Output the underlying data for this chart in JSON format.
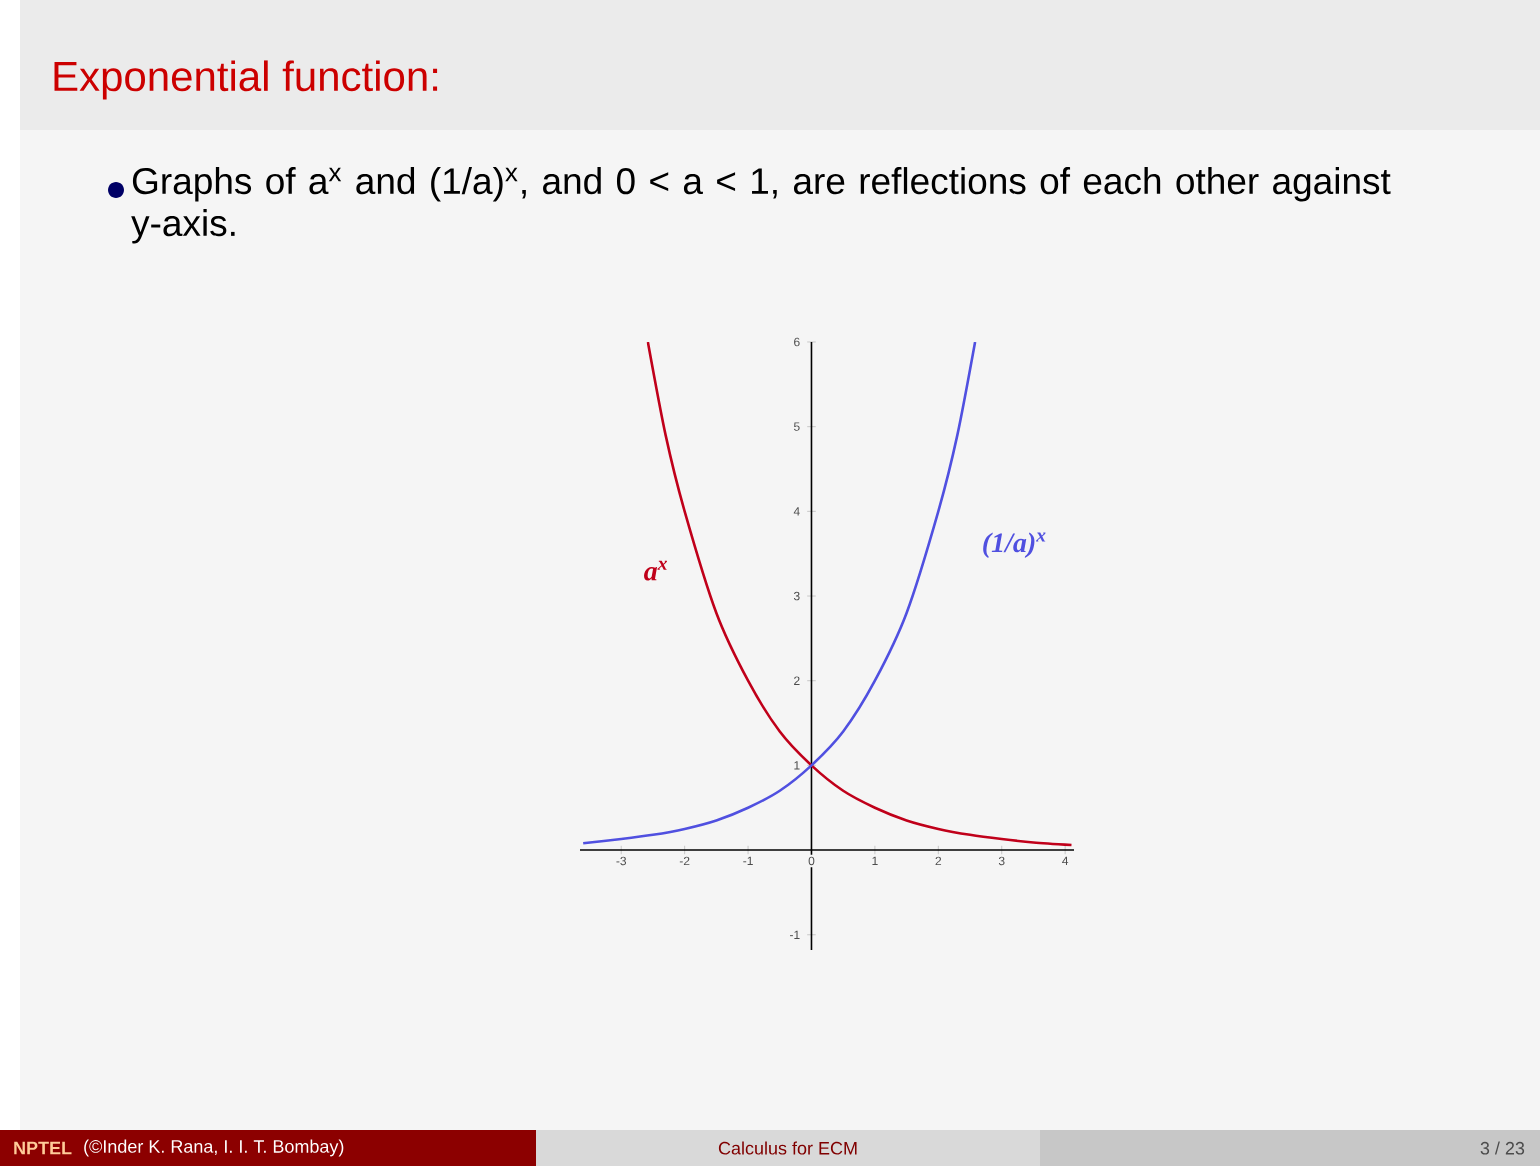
{
  "chart_data": {
    "type": "line",
    "title": "Exponential function:",
    "annotations": [
      "Graphs of a$^{x}$ and (1/a)$^{x}$, and 0 < a < 1, are reflections of each other against y-axis.",
      "NPTEL",
      "(©Inder K. Rana, I. I. T. Bombay)",
      "Calculus for ECM",
      "3 / 23"
    ],
    "xlim": [
      -3.65,
      4.14
    ],
    "ylim": [
      -1.18,
      6
    ],
    "xticks": [
      -3,
      -2,
      -1,
      0,
      1,
      2,
      3,
      4
    ],
    "yticks": [
      -1,
      1,
      2,
      3,
      4,
      5,
      6
    ],
    "marker": "none",
    "series": [
      {
        "name": "a$^{x}$",
        "color": "#c0001a",
        "x": [
          -2.58,
          -2.3,
          -2,
          -1.5,
          -1,
          -0.5,
          0,
          0.5,
          1,
          1.5,
          2,
          2.5,
          3,
          3.5,
          4.1
        ],
        "values": [
          6,
          4.9,
          4,
          2.8,
          2,
          1.4,
          1,
          0.7,
          0.5,
          0.35,
          0.25,
          0.18,
          0.13,
          0.09,
          0.06
        ]
      },
      {
        "name": "(1/a)$^{x}$",
        "color": "#5050e0",
        "x": [
          -3.6,
          -3,
          -2.5,
          -2,
          -1.5,
          -1,
          -0.5,
          0,
          0.5,
          1,
          1.5,
          2,
          2.3,
          2.58
        ],
        "values": [
          0.08,
          0.13,
          0.18,
          0.25,
          0.35,
          0.5,
          0.7,
          1,
          1.4,
          2,
          2.8,
          4,
          4.9,
          6
        ]
      }
    ]
  }
}
